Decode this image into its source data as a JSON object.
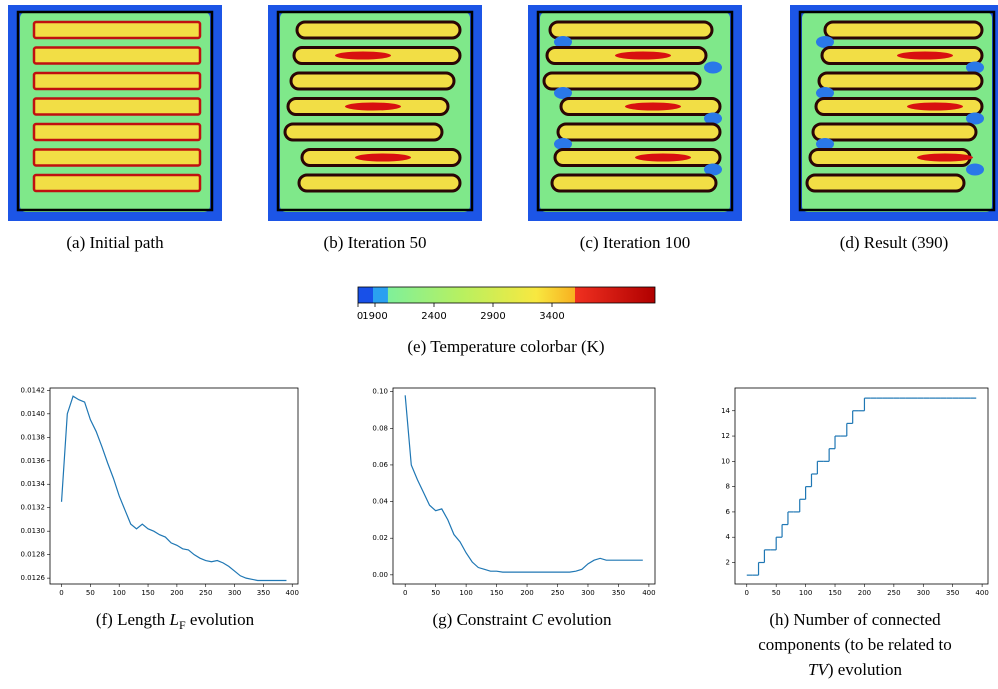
{
  "captions": {
    "a": "(a) Initial path",
    "b": "(b) Iteration 50",
    "c": "(c) Iteration 100",
    "d": "(d) Result (390)",
    "e": "(e) Temperature colorbar (K)",
    "f": {
      "pre": "(f) Length ",
      "math": "L",
      "sub": "F",
      "post": " evolution"
    },
    "g": {
      "pre": "(g) Constraint ",
      "math": "C",
      "post": " evolution"
    },
    "h": {
      "line1": "(h) Number of connected",
      "line2": "components (to be related to",
      "math": "TV",
      "post": ") evolution"
    }
  },
  "colorbar": {
    "ticks": [
      0,
      1900,
      2400,
      2900,
      3400
    ]
  },
  "chart_data": [
    {
      "type": "line",
      "x": [
        0,
        10,
        20,
        30,
        40,
        50,
        60,
        70,
        80,
        90,
        100,
        110,
        120,
        130,
        140,
        150,
        160,
        170,
        180,
        190,
        200,
        210,
        220,
        230,
        240,
        250,
        260,
        270,
        280,
        290,
        300,
        310,
        320,
        330,
        340,
        350,
        360,
        370,
        380,
        390
      ],
      "series": [
        {
          "color": "#1f77b4",
          "values": [
            0.01325,
            0.014,
            0.01415,
            0.01412,
            0.0141,
            0.01395,
            0.01385,
            0.01372,
            0.01358,
            0.01345,
            0.0133,
            0.01318,
            0.01306,
            0.01302,
            0.01306,
            0.01302,
            0.013,
            0.01297,
            0.01295,
            0.0129,
            0.01288,
            0.01285,
            0.01284,
            0.0128,
            0.01277,
            0.01275,
            0.01274,
            0.01275,
            0.01273,
            0.0127,
            0.01266,
            0.01262,
            0.0126,
            0.01259,
            0.01258,
            0.01258,
            0.01258,
            0.01258,
            0.01258,
            0.01258
          ]
        }
      ],
      "xlim": [
        -20,
        410
      ],
      "ylim": [
        0.01255,
        0.01422
      ],
      "xticks": [
        0,
        50,
        100,
        150,
        200,
        250,
        300,
        350,
        400
      ],
      "yticks": [
        0.0126,
        0.0128,
        {
          "value": 0.013,
          "label": "0.0130"
        },
        0.0132,
        0.0134,
        0.0136,
        0.0138,
        {
          "value": 0.014,
          "label": "0.0140"
        },
        0.0142
      ]
    },
    {
      "type": "line",
      "x": [
        0,
        10,
        20,
        30,
        40,
        50,
        60,
        70,
        80,
        90,
        100,
        110,
        120,
        130,
        140,
        150,
        160,
        170,
        180,
        190,
        200,
        210,
        220,
        230,
        240,
        250,
        260,
        270,
        280,
        290,
        300,
        310,
        320,
        330,
        340,
        350,
        360,
        370,
        380,
        390
      ],
      "series": [
        {
          "color": "#1f77b4",
          "values": [
            0.098,
            0.06,
            0.052,
            0.045,
            0.038,
            0.035,
            0.036,
            0.03,
            0.022,
            0.018,
            0.012,
            0.007,
            0.004,
            0.003,
            0.002,
            0.002,
            0.0015,
            0.0015,
            0.0015,
            0.0015,
            0.0015,
            0.0015,
            0.0015,
            0.0015,
            0.0015,
            0.0015,
            0.0015,
            0.0015,
            0.002,
            0.003,
            0.006,
            0.008,
            0.009,
            0.008,
            0.008,
            0.008,
            0.008,
            0.008,
            0.008,
            0.008
          ]
        }
      ],
      "xlim": [
        -20,
        410
      ],
      "ylim": [
        -0.005,
        0.102
      ],
      "xticks": [
        0,
        50,
        100,
        150,
        200,
        250,
        300,
        350,
        400
      ],
      "yticks": [
        {
          "value": 0,
          "label": "0.00"
        },
        0.02,
        0.04,
        0.06,
        0.08,
        {
          "value": 0.1,
          "label": "0.10"
        }
      ]
    },
    {
      "type": "step",
      "x": [
        0,
        10,
        20,
        30,
        40,
        50,
        60,
        70,
        80,
        90,
        100,
        110,
        120,
        130,
        140,
        150,
        160,
        170,
        180,
        190,
        200,
        210,
        220,
        230,
        240,
        250,
        260,
        270,
        280,
        290,
        300,
        310,
        320,
        330,
        340,
        350,
        360,
        370,
        380,
        390
      ],
      "series": [
        {
          "color": "#1f77b4",
          "values": [
            1,
            1,
            2,
            3,
            3,
            4,
            5,
            6,
            6,
            7,
            8,
            9,
            10,
            10,
            11,
            12,
            12,
            13,
            14,
            14,
            15,
            15,
            15,
            15,
            15,
            15,
            15,
            15,
            15,
            15,
            15,
            15,
            15,
            15,
            15,
            15,
            15,
            15,
            15,
            15
          ]
        }
      ],
      "xlim": [
        -20,
        410
      ],
      "ylim": [
        0.3,
        15.8
      ],
      "xticks": [
        0,
        50,
        100,
        150,
        200,
        250,
        300,
        350,
        400
      ],
      "yticks": [
        2,
        4,
        6,
        8,
        10,
        12,
        14
      ]
    }
  ]
}
